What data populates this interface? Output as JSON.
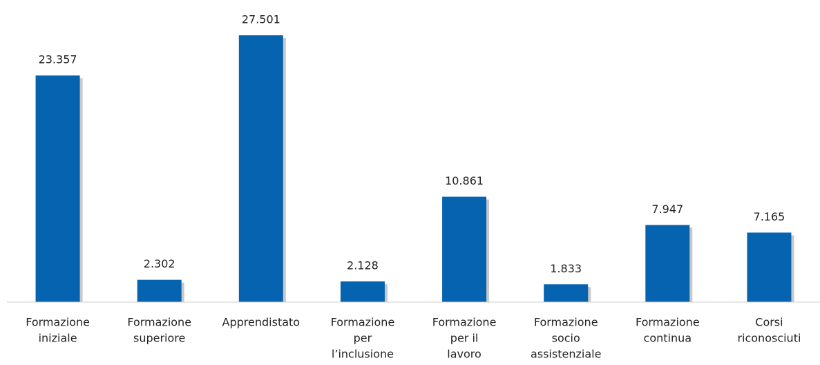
{
  "chart_data": {
    "type": "bar",
    "categories": [
      [
        "Formazione",
        "iniziale"
      ],
      [
        "Formazione",
        "superiore"
      ],
      [
        "Apprendistato"
      ],
      [
        "Formazione",
        "per",
        "l’inclusione"
      ],
      [
        "Formazione",
        "per il",
        "lavoro"
      ],
      [
        "Formazione",
        "socio",
        "assistenziale"
      ],
      [
        "Formazione",
        "continua"
      ],
      [
        "Corsi",
        "riconosciuti"
      ]
    ],
    "values": [
      23357,
      2302,
      27501,
      2128,
      10861,
      1833,
      7947,
      7165
    ],
    "value_labels": [
      "23.357",
      "2.302",
      "27.501",
      "2.128",
      "10.861",
      "1.833",
      "7.947",
      "7.165"
    ],
    "color": "#0563b0",
    "ylim": [
      0,
      30000
    ]
  }
}
